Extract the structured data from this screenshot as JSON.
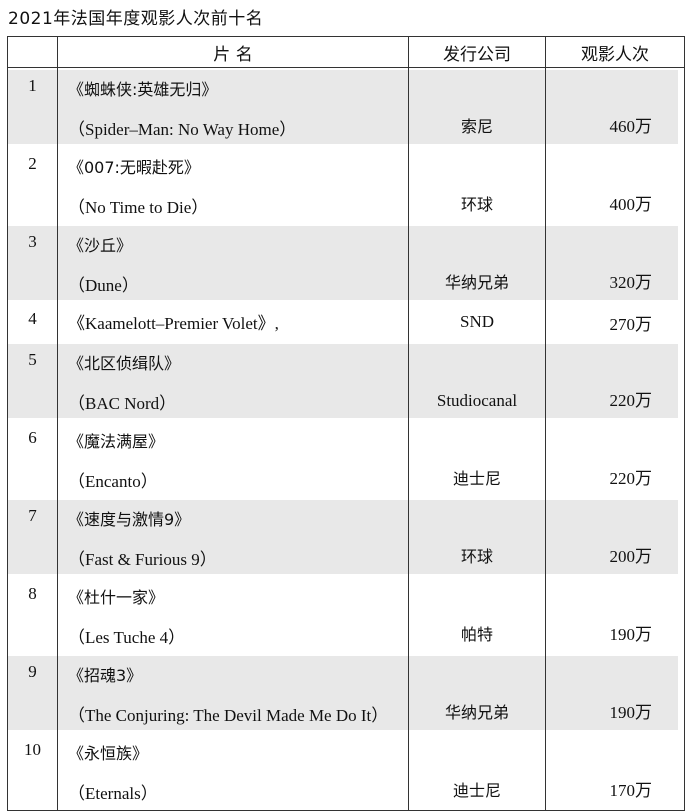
{
  "title": "2021年法国年度观影人次前十名",
  "headers": [
    "",
    "片 名",
    "发行公司",
    "观影人次"
  ],
  "rows": [
    {
      "rank": "1",
      "title_cn": "《蜘蛛侠:英雄无归》",
      "title_en": "（Spider–Man: No Way Home）",
      "distributor": "索尼",
      "admissions": "460万",
      "shaded": true
    },
    {
      "rank": "2",
      "title_cn": "《007:无暇赴死》",
      "title_en": "（No Time to Die）",
      "distributor": "环球",
      "admissions": "400万",
      "shaded": false
    },
    {
      "rank": "3",
      "title_cn": "《沙丘》",
      "title_en": "（Dune）",
      "distributor": "华纳兄弟",
      "admissions": "320万",
      "shaded": true
    },
    {
      "rank": "4",
      "title_cn": "《Kaamelott–Premier Volet》,",
      "title_en": "",
      "distributor": "SND",
      "admissions": "270万",
      "shaded": false
    },
    {
      "rank": "5",
      "title_cn": "《北区侦缉队》",
      "title_en": "（BAC Nord）",
      "distributor": "Studiocanal",
      "admissions": "220万",
      "shaded": true
    },
    {
      "rank": "6",
      "title_cn": "《魔法满屋》",
      "title_en": "（Encanto）",
      "distributor": "迪士尼",
      "admissions": "220万",
      "shaded": false
    },
    {
      "rank": "7",
      "title_cn": "《速度与激情9》",
      "title_en": "（Fast & Furious 9）",
      "distributor": "环球",
      "admissions": "200万",
      "shaded": true
    },
    {
      "rank": "8",
      "title_cn": "《杜什一家》",
      "title_en": "（Les Tuche 4）",
      "distributor": "帕特",
      "admissions": "190万",
      "shaded": false
    },
    {
      "rank": "9",
      "title_cn": "《招魂3》",
      "title_en": "（The Conjuring: The Devil Made Me Do It）",
      "distributor": "华纳兄弟",
      "admissions": "190万",
      "shaded": true
    },
    {
      "rank": "10",
      "title_cn": "《永恒族》",
      "title_en": "（Eternals）",
      "distributor": "迪士尼",
      "admissions": "170万",
      "shaded": false
    }
  ],
  "colors": {
    "shade": "#e8e8e8",
    "border": "#333333"
  }
}
